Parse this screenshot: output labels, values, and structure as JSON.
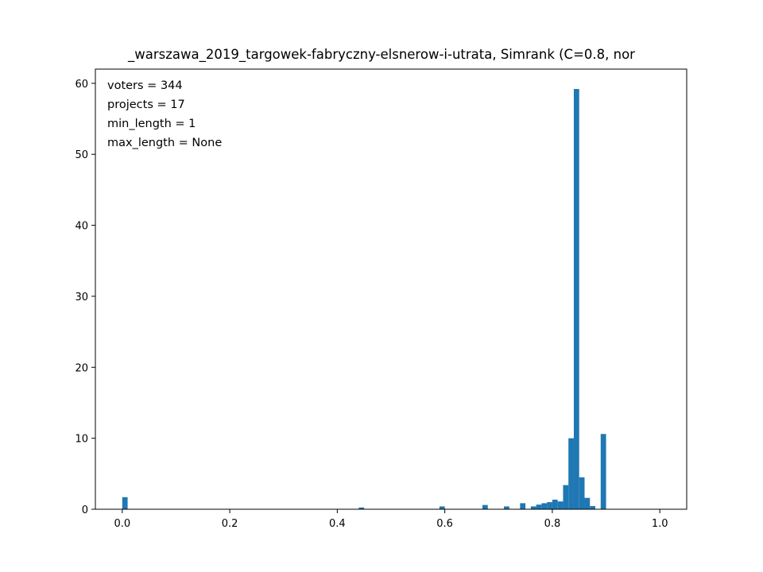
{
  "chart_data": {
    "type": "bar",
    "title": "_warszawa_2019_targowek-fabryczny-elsnerow-i-utrata, Simrank (C=0.8, nor",
    "xlim": [
      -0.05,
      1.05
    ],
    "ylim": [
      0,
      62
    ],
    "bin_width": 0.01,
    "bar_color": "#1f77b4",
    "x_ticks": [
      0.0,
      0.2,
      0.4,
      0.6,
      0.8,
      1.0
    ],
    "x_tick_labels": [
      "0.0",
      "0.2",
      "0.4",
      "0.6",
      "0.8",
      "1.0"
    ],
    "y_ticks": [
      0,
      10,
      20,
      30,
      40,
      50,
      60
    ],
    "y_tick_labels": [
      "0",
      "10",
      "20",
      "30",
      "40",
      "50",
      "60"
    ],
    "annotations": [
      "voters = 344",
      "projects = 17",
      "min_length = 1",
      "max_length = None"
    ],
    "bins": [
      {
        "x": 0.0,
        "y": 1.7
      },
      {
        "x": 0.44,
        "y": 0.25
      },
      {
        "x": 0.59,
        "y": 0.4
      },
      {
        "x": 0.67,
        "y": 0.6
      },
      {
        "x": 0.71,
        "y": 0.4
      },
      {
        "x": 0.74,
        "y": 0.85
      },
      {
        "x": 0.76,
        "y": 0.4
      },
      {
        "x": 0.77,
        "y": 0.65
      },
      {
        "x": 0.78,
        "y": 0.85
      },
      {
        "x": 0.79,
        "y": 1.0
      },
      {
        "x": 0.8,
        "y": 1.35
      },
      {
        "x": 0.81,
        "y": 1.1
      },
      {
        "x": 0.82,
        "y": 3.4
      },
      {
        "x": 0.83,
        "y": 10.0
      },
      {
        "x": 0.84,
        "y": 59.2
      },
      {
        "x": 0.85,
        "y": 4.5
      },
      {
        "x": 0.86,
        "y": 1.6
      },
      {
        "x": 0.87,
        "y": 0.45
      },
      {
        "x": 0.89,
        "y": 10.6
      }
    ]
  }
}
